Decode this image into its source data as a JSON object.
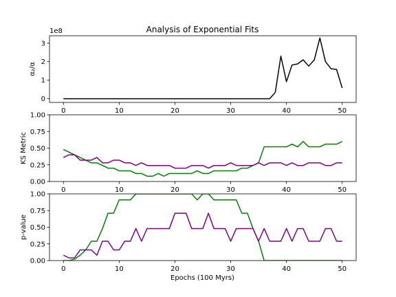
{
  "figure": {
    "title": "Analysis of Exponential Fits",
    "xlabel": "Epochs (100 Myrs)"
  },
  "chart_data": [
    {
      "type": "line",
      "ylabel": "α₂/α",
      "offset_text": "1e8",
      "xlim": [
        -2.5,
        52.5
      ],
      "ylim": [
        -0.2,
        3.4
      ],
      "xticks": [
        0,
        10,
        20,
        30,
        40,
        50
      ],
      "yticks": [
        0,
        1,
        2,
        3
      ],
      "ytick_labels": [
        "0",
        "1",
        "2",
        "3"
      ],
      "x": [
        0,
        1,
        2,
        3,
        4,
        5,
        6,
        7,
        8,
        9,
        10,
        11,
        12,
        13,
        14,
        15,
        16,
        17,
        18,
        19,
        20,
        21,
        22,
        23,
        24,
        25,
        26,
        27,
        28,
        29,
        30,
        31,
        32,
        33,
        34,
        35,
        36,
        37,
        38,
        39,
        40,
        41,
        42,
        43,
        44,
        45,
        46,
        47,
        48,
        49,
        50
      ],
      "series": [
        {
          "color": "#000000",
          "values": [
            0,
            0,
            0,
            0,
            0,
            0,
            0,
            0,
            0,
            0,
            0,
            0,
            0,
            0,
            0,
            0,
            0,
            0,
            0,
            0,
            0,
            0,
            0,
            0,
            0,
            0,
            0,
            0,
            0,
            0,
            0,
            0,
            0,
            0,
            0,
            0,
            0,
            0,
            0.35,
            2.3,
            0.92,
            1.82,
            1.88,
            2.1,
            1.76,
            2.1,
            3.28,
            2.0,
            1.62,
            1.58,
            0.58
          ]
        }
      ]
    },
    {
      "type": "line",
      "ylabel": "KS Metric",
      "xlim": [
        -2.5,
        52.5
      ],
      "ylim": [
        0,
        1
      ],
      "xticks": [
        0,
        10,
        20,
        30,
        40,
        50
      ],
      "yticks": [
        0,
        0.25,
        0.5,
        0.75,
        1.0
      ],
      "ytick_labels": [
        "0.00",
        "0.25",
        "0.50",
        "0.75",
        "1.00"
      ],
      "x": [
        0,
        1,
        2,
        3,
        4,
        5,
        6,
        7,
        8,
        9,
        10,
        11,
        12,
        13,
        14,
        15,
        16,
        17,
        18,
        19,
        20,
        21,
        22,
        23,
        24,
        25,
        26,
        27,
        28,
        29,
        30,
        31,
        32,
        33,
        34,
        35,
        36,
        37,
        38,
        39,
        40,
        41,
        42,
        43,
        44,
        45,
        46,
        47,
        48,
        49,
        50
      ],
      "series": [
        {
          "color": "#008000",
          "values": [
            0.48,
            0.44,
            0.4,
            0.36,
            0.32,
            0.28,
            0.28,
            0.24,
            0.2,
            0.2,
            0.16,
            0.16,
            0.16,
            0.12,
            0.12,
            0.08,
            0.08,
            0.12,
            0.08,
            0.12,
            0.12,
            0.12,
            0.12,
            0.12,
            0.16,
            0.12,
            0.12,
            0.16,
            0.16,
            0.16,
            0.16,
            0.16,
            0.2,
            0.2,
            0.24,
            0.28,
            0.52,
            0.52,
            0.52,
            0.52,
            0.52,
            0.56,
            0.52,
            0.6,
            0.52,
            0.52,
            0.52,
            0.56,
            0.56,
            0.56,
            0.6
          ]
        },
        {
          "color": "#800080",
          "values": [
            0.36,
            0.4,
            0.4,
            0.32,
            0.32,
            0.32,
            0.36,
            0.28,
            0.28,
            0.32,
            0.32,
            0.28,
            0.28,
            0.24,
            0.28,
            0.24,
            0.24,
            0.24,
            0.24,
            0.24,
            0.2,
            0.2,
            0.2,
            0.24,
            0.24,
            0.24,
            0.2,
            0.24,
            0.24,
            0.24,
            0.28,
            0.24,
            0.24,
            0.24,
            0.24,
            0.28,
            0.24,
            0.28,
            0.28,
            0.28,
            0.24,
            0.28,
            0.24,
            0.24,
            0.28,
            0.28,
            0.28,
            0.24,
            0.24,
            0.28,
            0.28
          ]
        }
      ]
    },
    {
      "type": "line",
      "ylabel": "p-value",
      "xlim": [
        -2.5,
        52.5
      ],
      "ylim": [
        0,
        1
      ],
      "xticks": [
        0,
        10,
        20,
        30,
        40,
        50
      ],
      "xtick_labels": [
        "0",
        "10",
        "20",
        "30",
        "40",
        "50"
      ],
      "yticks": [
        0,
        0.25,
        0.5,
        0.75,
        1.0
      ],
      "ytick_labels": [
        "0.00",
        "0.25",
        "0.50",
        "0.75",
        "1.00"
      ],
      "x": [
        0,
        1,
        2,
        3,
        4,
        5,
        6,
        7,
        8,
        9,
        10,
        11,
        12,
        13,
        14,
        15,
        16,
        17,
        18,
        19,
        20,
        21,
        22,
        23,
        24,
        25,
        26,
        27,
        28,
        29,
        30,
        31,
        32,
        33,
        34,
        35,
        36,
        37,
        38,
        39,
        40,
        41,
        42,
        43,
        44,
        45,
        46,
        47,
        48,
        49,
        50
      ],
      "series": [
        {
          "color": "#008000",
          "values": [
            0.0,
            0.0,
            0.02,
            0.08,
            0.16,
            0.29,
            0.29,
            0.48,
            0.71,
            0.71,
            0.91,
            0.91,
            0.91,
            1.0,
            1.0,
            1.0,
            1.0,
            1.0,
            1.0,
            1.0,
            1.0,
            1.0,
            1.0,
            1.0,
            0.91,
            1.0,
            1.0,
            0.91,
            0.91,
            0.91,
            0.91,
            0.91,
            0.71,
            0.71,
            0.48,
            0.29,
            0.0,
            0.0,
            0.0,
            0.0,
            0.0,
            0.0,
            0.0,
            0.0,
            0.0,
            0.0,
            0.0,
            0.0,
            0.0,
            0.0,
            0.0
          ]
        },
        {
          "color": "#800080",
          "values": [
            0.08,
            0.04,
            0.04,
            0.16,
            0.16,
            0.16,
            0.08,
            0.29,
            0.29,
            0.16,
            0.16,
            0.29,
            0.29,
            0.48,
            0.29,
            0.48,
            0.48,
            0.48,
            0.48,
            0.48,
            0.71,
            0.71,
            0.71,
            0.48,
            0.48,
            0.48,
            0.71,
            0.48,
            0.48,
            0.48,
            0.29,
            0.48,
            0.48,
            0.48,
            0.48,
            0.29,
            0.48,
            0.29,
            0.29,
            0.29,
            0.48,
            0.29,
            0.48,
            0.48,
            0.29,
            0.29,
            0.29,
            0.48,
            0.48,
            0.29,
            0.29
          ]
        }
      ]
    }
  ]
}
